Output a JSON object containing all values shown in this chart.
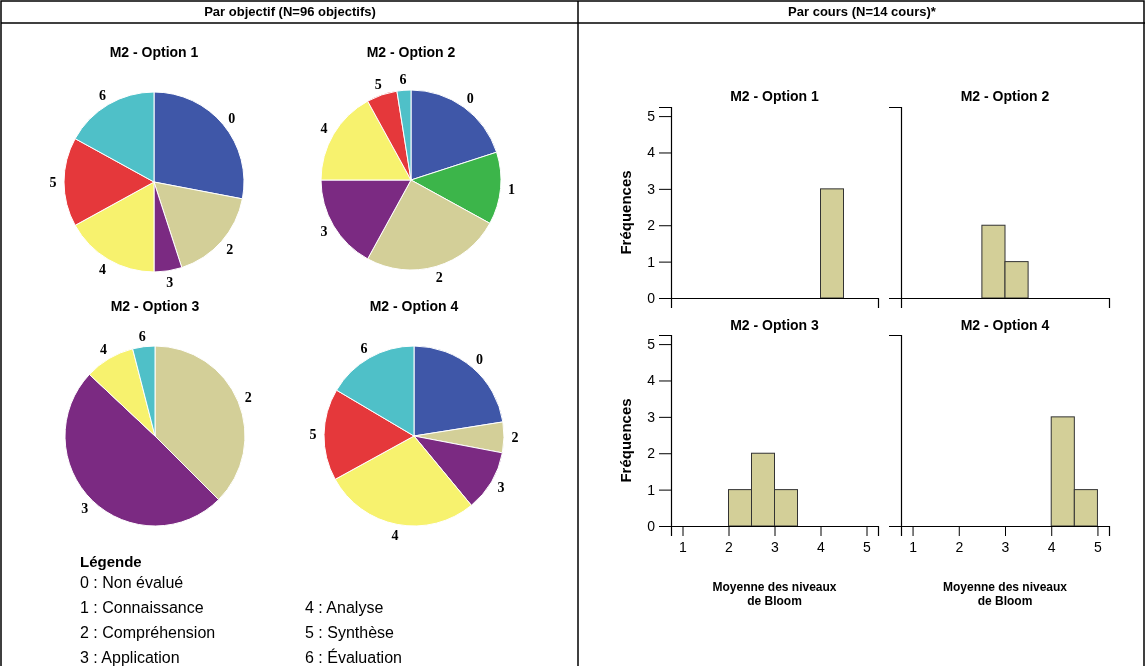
{
  "chart_data": [
    {
      "type": "pie",
      "title": "M2 - Option 1",
      "annotations": [
        "Par objectif (N=96 objectifs)"
      ],
      "categories": [
        "0",
        "2",
        "3",
        "4",
        "5",
        "6"
      ],
      "values": [
        28,
        17,
        5,
        17,
        16,
        17
      ],
      "colors": [
        "#3f57a8",
        "#d3cf98",
        "#7b2a82",
        "#f7f26e",
        "#e5383b",
        "#4fc0c8"
      ]
    },
    {
      "type": "pie",
      "title": "M2 - Option 2",
      "categories": [
        "0",
        "1",
        "2",
        "3",
        "4",
        "5",
        "6"
      ],
      "values": [
        20,
        13,
        25,
        17,
        17,
        5.5,
        2.5
      ],
      "colors": [
        "#3f57a8",
        "#3cb54a",
        "#d3cf98",
        "#7b2a82",
        "#f7f26e",
        "#e5383b",
        "#4fc0c8"
      ]
    },
    {
      "type": "pie",
      "title": "M2 - Option 3",
      "categories": [
        "2",
        "3",
        "4",
        "6"
      ],
      "values": [
        37.5,
        49.5,
        9,
        4
      ],
      "colors": [
        "#d3cf98",
        "#7b2a82",
        "#f7f26e",
        "#4fc0c8"
      ]
    },
    {
      "type": "pie",
      "title": "M2 - Option 4",
      "categories": [
        "0",
        "2",
        "3",
        "4",
        "5",
        "6"
      ],
      "values": [
        22.5,
        5.5,
        11,
        28,
        16.5,
        16.5
      ],
      "colors": [
        "#3f57a8",
        "#d3cf98",
        "#7b2a82",
        "#f7f26e",
        "#e5383b",
        "#4fc0c8"
      ]
    },
    {
      "type": "other",
      "title": "Légende",
      "annotations": [
        "0 : Non évalué",
        "1 : Connaissance",
        "2 : Compréhension",
        "3 : Application",
        "4 : Analyse",
        "5 : Synthèse",
        "6 : Évaluation"
      ]
    },
    {
      "type": "histogram",
      "title": "M2 - Option 1",
      "annotations": [
        "Par cours (N=14 cours)*"
      ],
      "ylabel": "Fréquences",
      "bins": [
        4,
        4.5
      ],
      "values": [
        3
      ],
      "color": "#d3cf98",
      "xlim": [
        0.75,
        5.25
      ],
      "ylim": [
        0,
        5.25
      ],
      "xticks": [
        1,
        2,
        3,
        4,
        5
      ],
      "yticks": [
        0,
        1,
        2,
        3,
        4,
        5
      ],
      "tick_labels": "y"
    },
    {
      "type": "histogram",
      "title": "M2 - Option 2",
      "bins": [
        2.5,
        3,
        3.5
      ],
      "values": [
        2,
        1
      ],
      "color": "#d3cf98",
      "xlim": [
        0.75,
        5.25
      ],
      "ylim": [
        0,
        5.25
      ],
      "xticks": [
        1,
        2,
        3,
        4,
        5
      ],
      "yticks": [
        0,
        1,
        2,
        3,
        4,
        5
      ],
      "tick_labels": false
    },
    {
      "type": "histogram",
      "title": "M2 - Option 3",
      "xlabel": "Moyenne des niveaux de Bloom",
      "ylabel": "Fréquences",
      "bins": [
        2,
        2.5,
        3,
        3.5
      ],
      "values": [
        1,
        2,
        1
      ],
      "color": "#d3cf98",
      "xlim": [
        0.75,
        5.25
      ],
      "ylim": [
        0,
        5.25
      ],
      "xticks": [
        1,
        2,
        3,
        4,
        5
      ],
      "yticks": [
        0,
        1,
        2,
        3,
        4,
        5
      ]
    },
    {
      "type": "histogram",
      "title": "M2 - Option 4",
      "xlabel": "Moyenne des niveaux de Bloom",
      "bins": [
        4,
        4.5,
        5
      ],
      "values": [
        3,
        1
      ],
      "color": "#d3cf98",
      "xlim": [
        0.75,
        5.25
      ],
      "ylim": [
        0,
        5.25
      ],
      "xticks": [
        1,
        2,
        3,
        4,
        5
      ],
      "yticks": [
        0,
        1,
        2,
        3,
        4,
        5
      ],
      "tick_labels": "x"
    }
  ]
}
